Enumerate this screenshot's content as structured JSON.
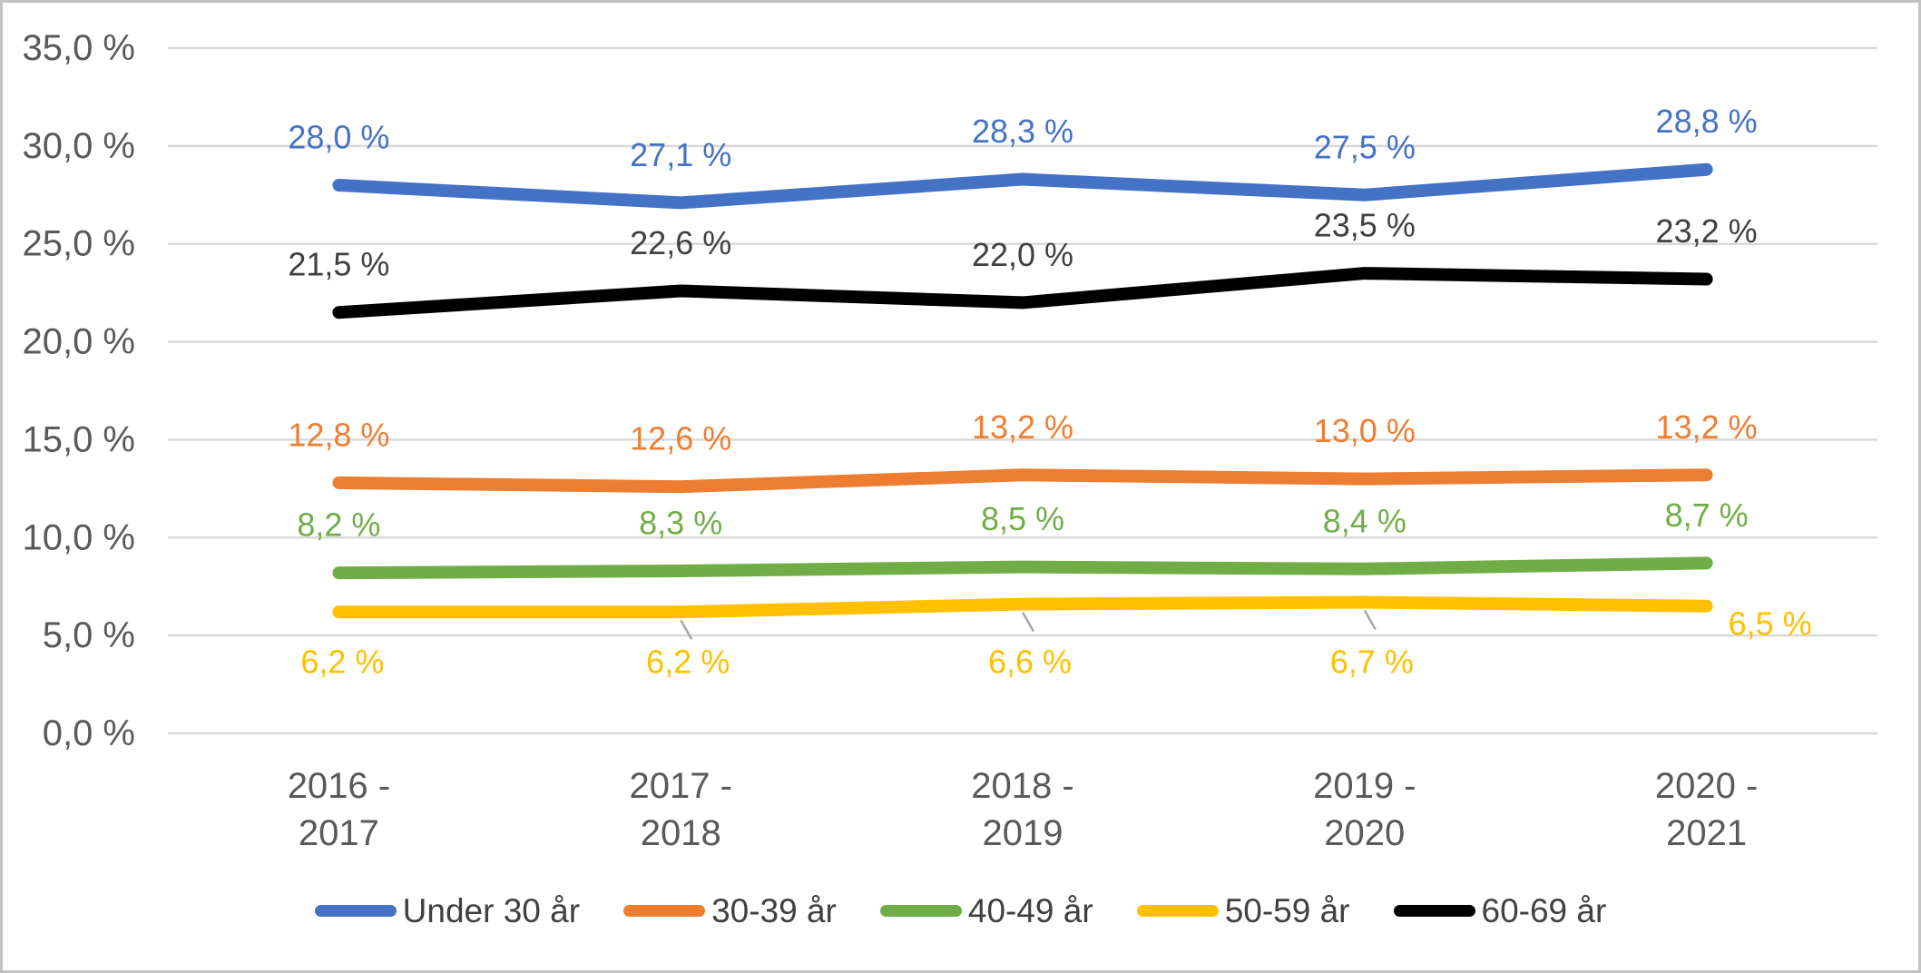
{
  "chart_data": {
    "type": "line",
    "title": "",
    "grid": true,
    "legend_position": "bottom",
    "ylim": [
      0,
      35
    ],
    "ytick_step": 5,
    "y_axis_ticks": [
      {
        "value": 35,
        "label": "35,0 %"
      },
      {
        "value": 30,
        "label": "30,0 %"
      },
      {
        "value": 25,
        "label": "25,0 %"
      },
      {
        "value": 20,
        "label": "20,0 %"
      },
      {
        "value": 15,
        "label": "15,0 %"
      },
      {
        "value": 10,
        "label": "10,0 %"
      },
      {
        "value": 5,
        "label": "5,0 %"
      },
      {
        "value": 0,
        "label": "0,0 %"
      }
    ],
    "categories": [
      [
        "2016 -",
        "2017"
      ],
      [
        "2017 -",
        "2018"
      ],
      [
        "2018 -",
        "2019"
      ],
      [
        "2019 -",
        "2020"
      ],
      [
        "2020 -",
        "2021"
      ]
    ],
    "series": [
      {
        "name": "Under 30 år",
        "color": "#4472C4",
        "values": [
          28.0,
          27.1,
          28.3,
          27.5,
          28.8
        ],
        "labels": [
          "28,0 %",
          "27,1 %",
          "28,3 %",
          "27,5 %",
          "28,8 %"
        ],
        "label_position": "above"
      },
      {
        "name": "30-39 år",
        "color": "#ED7D31",
        "values": [
          12.8,
          12.6,
          13.2,
          13.0,
          13.2
        ],
        "labels": [
          "12,8 %",
          "12,6 %",
          "13,2 %",
          "13,0 %",
          "13,2 %"
        ],
        "label_position": "above"
      },
      {
        "name": "40-49 år",
        "color": "#70AD47",
        "values": [
          8.2,
          8.3,
          8.5,
          8.4,
          8.7
        ],
        "labels": [
          "8,2 %",
          "8,3 %",
          "8,5 %",
          "8,4 %",
          "8,7 %"
        ],
        "label_position": "above"
      },
      {
        "name": "50-59 år",
        "color": "#FFC000",
        "values": [
          6.2,
          6.2,
          6.6,
          6.7,
          6.5
        ],
        "labels": [
          "6,2 %",
          "6,2 %",
          "6,6 %",
          "6,7 %",
          "6,5 %"
        ],
        "label_position": "below",
        "last_label_position": "right",
        "leader_line_points": [
          1,
          2,
          3
        ]
      },
      {
        "name": "60-69 år",
        "color": "#000000",
        "label_color": "#404040",
        "values": [
          21.5,
          22.6,
          22.0,
          23.5,
          23.2
        ],
        "labels": [
          "21,5 %",
          "22,6 %",
          "22,0 %",
          "23,5 %",
          "23,2 %"
        ],
        "label_position": "above"
      }
    ],
    "style_colors": {
      "gridline": "#D9D9D9",
      "axis_text": "#595959",
      "leader_line": "#A6A6A6",
      "frame_border": "#C3C3C3",
      "background": "#FFFFFF"
    }
  }
}
